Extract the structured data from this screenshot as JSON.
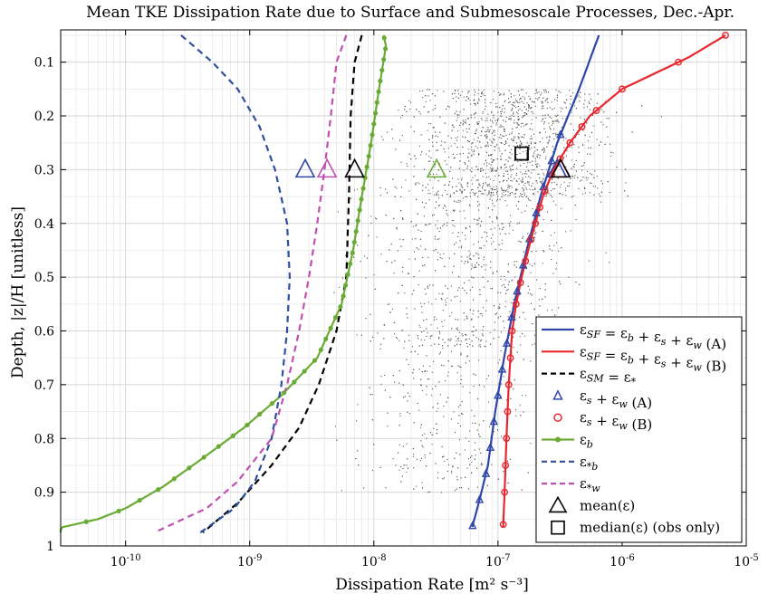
{
  "chart_data": {
    "type": "line",
    "title": "Mean TKE Dissipation Rate due to Surface and Submesoscale Processes, Dec.-Apr.",
    "xlabel": "Dissipation Rate [m² s⁻³]",
    "ylabel": "Depth, |z|/H [unitless]",
    "x_scale": "log",
    "y_inverted": true,
    "xlim": [
      3e-11,
      1e-05
    ],
    "ylim": [
      0.04,
      1.0
    ],
    "x_ticks": [
      1e-10,
      1e-09,
      1e-08,
      1e-07,
      1e-06,
      1e-05
    ],
    "x_tick_labels": [
      {
        "base": "10",
        "exp": "-10"
      },
      {
        "base": "10",
        "exp": "-9"
      },
      {
        "base": "10",
        "exp": "-8"
      },
      {
        "base": "10",
        "exp": "-7"
      },
      {
        "base": "10",
        "exp": "-6"
      },
      {
        "base": "10",
        "exp": "-5"
      }
    ],
    "y_ticks": [
      0.1,
      0.2,
      0.3,
      0.4,
      0.5,
      0.6,
      0.7,
      0.8,
      0.9,
      1.0
    ],
    "y_tick_labels": [
      "0.1",
      "0.2",
      "0.3",
      "0.4",
      "0.5",
      "0.6",
      "0.7",
      "0.8",
      "0.9",
      "1"
    ],
    "grid": true,
    "legend_position": "bottom-right",
    "colors": {
      "sf_a": "#2f46a8",
      "sf_b": "#e8262d",
      "sm": "#000000",
      "eps_b": "#6aab35",
      "eps_star_b": "#2f4f9c",
      "eps_star_w": "#c050b0",
      "scatter": "#555555"
    },
    "series": [
      {
        "key": "eps_sf_a",
        "style": "solid",
        "color": "#2f46a8",
        "points": [
          [
            6.5e-07,
            0.05
          ],
          [
            4.5e-07,
            0.15
          ],
          [
            3e-07,
            0.25
          ],
          [
            2.2e-07,
            0.35
          ],
          [
            1.7e-07,
            0.45
          ],
          [
            1.35e-07,
            0.55
          ],
          [
            1.12e-07,
            0.65
          ],
          [
            9.5e-08,
            0.75
          ],
          [
            8.3e-08,
            0.85
          ],
          [
            7e-08,
            0.92
          ],
          [
            6.2e-08,
            0.965
          ]
        ]
      },
      {
        "key": "eps_sf_b",
        "style": "solid",
        "color": "#e8262d",
        "points": [
          [
            6.8e-06,
            0.05
          ],
          [
            3.5e-06,
            0.09
          ],
          [
            1e-06,
            0.15
          ],
          [
            5.5e-07,
            0.2
          ],
          [
            3.8e-07,
            0.25
          ],
          [
            2.8e-07,
            0.3
          ],
          [
            2.3e-07,
            0.35
          ],
          [
            2e-07,
            0.4
          ],
          [
            1.75e-07,
            0.45
          ],
          [
            1.55e-07,
            0.5
          ],
          [
            1.4e-07,
            0.55
          ],
          [
            1.3e-07,
            0.6
          ],
          [
            1.22e-07,
            0.7
          ],
          [
            1.17e-07,
            0.8
          ],
          [
            1.13e-07,
            0.9
          ],
          [
            1.1e-07,
            0.965
          ]
        ]
      },
      {
        "key": "eps_sm",
        "style": "dashed",
        "color": "#000000",
        "points": [
          [
            8e-09,
            0.05
          ],
          [
            7e-09,
            0.1
          ],
          [
            6.5e-09,
            0.2
          ],
          [
            6.3e-09,
            0.35
          ],
          [
            6e-09,
            0.5
          ],
          [
            5e-09,
            0.6
          ],
          [
            3.6e-09,
            0.7
          ],
          [
            2.5e-09,
            0.78
          ],
          [
            1.5e-09,
            0.85
          ],
          [
            8e-10,
            0.92
          ],
          [
            4.2e-10,
            0.975
          ]
        ]
      },
      {
        "key": "eps_b",
        "style": "solid-dots",
        "color": "#6aab35",
        "points": [
          [
            1.2e-08,
            0.05
          ],
          [
            1.25e-08,
            0.07
          ],
          [
            1.1e-08,
            0.15
          ],
          [
            9.5e-09,
            0.25
          ],
          [
            8e-09,
            0.35
          ],
          [
            6.8e-09,
            0.45
          ],
          [
            5.5e-09,
            0.55
          ],
          [
            3.5e-09,
            0.65
          ],
          [
            1.8e-09,
            0.72
          ],
          [
            9e-10,
            0.78
          ],
          [
            4e-10,
            0.84
          ],
          [
            2e-10,
            0.89
          ],
          [
            1e-10,
            0.93
          ],
          [
            6e-11,
            0.95
          ],
          [
            2e-11,
            0.975
          ]
        ]
      },
      {
        "key": "eps_star_b",
        "style": "dashed",
        "color": "#2f4f9c",
        "points": [
          [
            2.8e-10,
            0.05
          ],
          [
            5e-10,
            0.1
          ],
          [
            8e-10,
            0.15
          ],
          [
            1.2e-09,
            0.22
          ],
          [
            1.6e-09,
            0.3
          ],
          [
            2e-09,
            0.4
          ],
          [
            2.1e-09,
            0.5
          ],
          [
            2e-09,
            0.6
          ],
          [
            1.8e-09,
            0.7
          ],
          [
            1.5e-09,
            0.8
          ],
          [
            1.1e-09,
            0.88
          ],
          [
            7.5e-10,
            0.93
          ],
          [
            4e-10,
            0.975
          ]
        ]
      },
      {
        "key": "eps_star_w",
        "style": "dashed",
        "color": "#c050b0",
        "points": [
          [
            6e-09,
            0.05
          ],
          [
            5e-09,
            0.1
          ],
          [
            4.5e-09,
            0.2
          ],
          [
            4e-09,
            0.3
          ],
          [
            3.5e-09,
            0.4
          ],
          [
            3e-09,
            0.5
          ],
          [
            2.5e-09,
            0.6
          ],
          [
            2e-09,
            0.7
          ],
          [
            1.5e-09,
            0.8
          ],
          [
            8e-10,
            0.88
          ],
          [
            4.5e-10,
            0.93
          ],
          [
            1.7e-10,
            0.975
          ]
        ]
      }
    ],
    "mean_markers": [
      {
        "x": 2.8e-09,
        "y": 0.3,
        "color": "#2f46a8"
      },
      {
        "x": 4.2e-09,
        "y": 0.3,
        "color": "#c050b0"
      },
      {
        "x": 7e-09,
        "y": 0.3,
        "color": "#000000"
      },
      {
        "x": 3.2e-08,
        "y": 0.3,
        "color": "#6aab35"
      },
      {
        "x": 3e-07,
        "y": 0.3,
        "color": "#2f46a8"
      },
      {
        "x": 3.2e-07,
        "y": 0.3,
        "color": "#e8262d"
      },
      {
        "x": 3.2e-07,
        "y": 0.3,
        "color": "#000000"
      }
    ],
    "median_marker": {
      "x": 1.55e-07,
      "y": 0.27,
      "color": "#000000"
    },
    "legend": [
      {
        "type": "line",
        "color": "#2f46a8",
        "dash": false,
        "label": "ε_SF = ε_b + ε_s + ε_w (A)"
      },
      {
        "type": "line",
        "color": "#e8262d",
        "dash": false,
        "label": "ε_SF = ε_b + ε_s + ε_w (B)"
      },
      {
        "type": "line",
        "color": "#000000",
        "dash": true,
        "label": "ε_SM = ε_*"
      },
      {
        "type": "tri",
        "color": "#2f46a8",
        "label": "ε_s + ε_w (A)"
      },
      {
        "type": "circ",
        "color": "#e8262d",
        "label": "ε_s + ε_w (B)"
      },
      {
        "type": "dotline",
        "color": "#6aab35",
        "label": "ε_b"
      },
      {
        "type": "line",
        "color": "#2f4f9c",
        "dash": true,
        "label": "ε_*b"
      },
      {
        "type": "line",
        "color": "#c050b0",
        "dash": true,
        "label": "ε_*w"
      },
      {
        "type": "bigtri",
        "color": "#000000",
        "label": "mean(ε)"
      },
      {
        "type": "square",
        "color": "#000000",
        "label": "median(ε) (obs only)"
      }
    ]
  }
}
